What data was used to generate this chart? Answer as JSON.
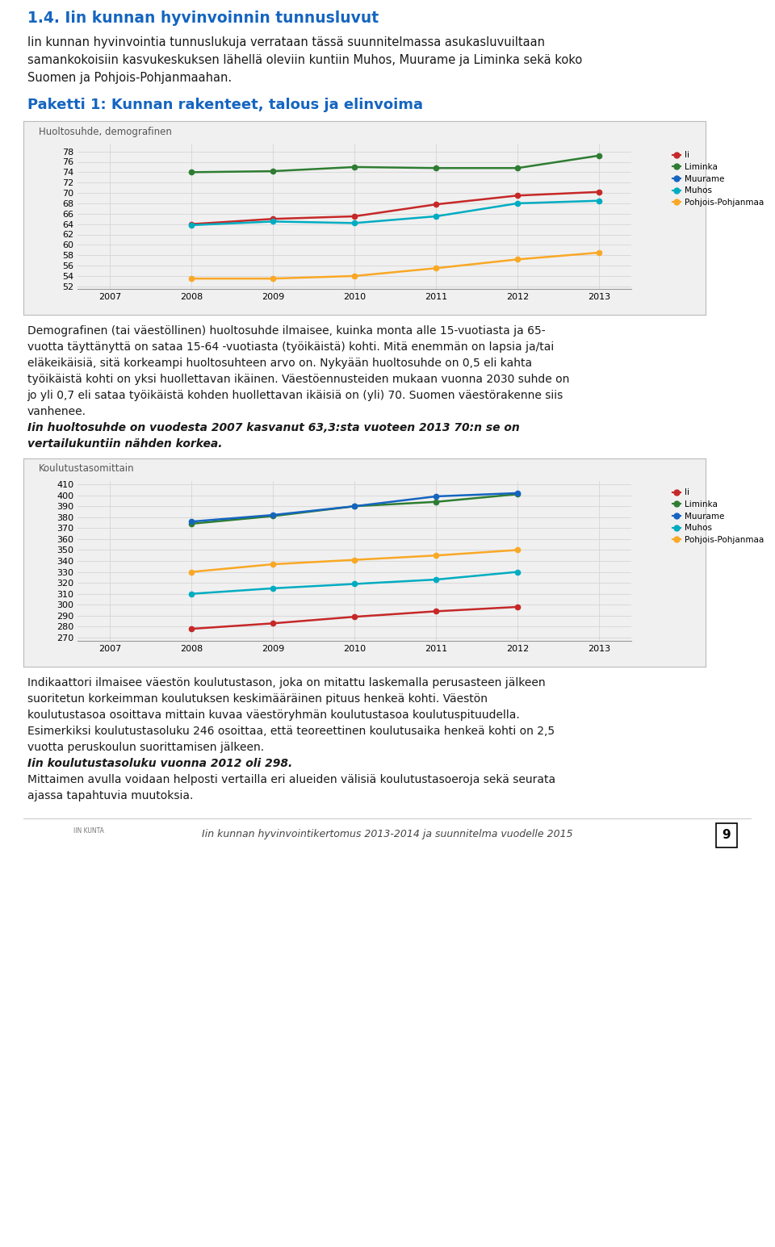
{
  "page_title": "1.4. Iin kunnan hyvinvoinnin tunnusluvut",
  "page_title_color": "#1565c0",
  "intro_lines": [
    "Iin kunnan hyvinvointia tunnuslukuja verrataan tässä suunnitelmassa asukasluvuiltaan",
    "samankokoisiin kasvukeskuksen lähellä oleviin kuntiin Muhos, Muurame ja Liminka sekä koko",
    "Suomen ja Pohjois-Pohjanmaahan."
  ],
  "section_title": "Paketti 1: Kunnan rakenteet, talous ja elinvoima",
  "section_title_color": "#1565c0",
  "chart1_title": "Huoltosuhde, demografinen",
  "chart1_years": [
    2007,
    2008,
    2009,
    2010,
    2011,
    2012,
    2013
  ],
  "chart1_ylim": [
    51.5,
    79.5
  ],
  "chart1_yticks": [
    52,
    54,
    56,
    58,
    60,
    62,
    64,
    66,
    68,
    70,
    72,
    74,
    76,
    78
  ],
  "chart1_series": {
    "Ii": [
      null,
      64.0,
      65.0,
      65.5,
      67.8,
      69.5,
      70.2
    ],
    "Liminka": [
      null,
      74.0,
      74.2,
      75.0,
      74.8,
      74.8,
      77.2
    ],
    "Muurame": [
      null,
      null,
      null,
      null,
      null,
      null,
      null
    ],
    "Muhos": [
      null,
      63.8,
      64.5,
      64.2,
      65.5,
      68.0,
      68.5
    ],
    "Pohjois-Pohjanmaa": [
      null,
      53.5,
      53.5,
      54.0,
      55.5,
      57.2,
      58.5
    ]
  },
  "chart1_colors": {
    "Ii": "#c62828",
    "Liminka": "#2e7d32",
    "Muurame": "#1565c0",
    "Muhos": "#00acc1",
    "Pohjois-Pohjanmaa": "#f9a825"
  },
  "para1_lines": [
    "Demografinen (tai väestöllinen) huoltosuhde ilmaisee, kuinka monta alle 15-vuotiasta ja 65-",
    "vuotta täyttänyttä on sataa 15-64 -vuotiasta (työikäistä) kohti. Mitä enemmän on lapsia ja/tai",
    "eläkeikäisiä, sitä korkeampi huoltosuhteen arvo on. Nykyään huoltosuhde on 0,5 eli kahta",
    "työikäistä kohti on yksi huollettavan ikäinen. Väestöennusteiden mukaan vuonna 2030 suhde on",
    "jo yli 0,7 eli sataa työikäistä kohden huollettavan ikäisiä on (yli) 70. Suomen väestörakenne siis",
    "vanhenee."
  ],
  "para1_bold_lines": [
    "Iin huoltosuhde on vuodesta 2007 kasvanut 63,3:sta vuoteen 2013 70:n se on",
    "vertailukuntiin nähden korkea."
  ],
  "chart2_title": "Koulutustasomittain",
  "chart2_years": [
    2007,
    2008,
    2009,
    2010,
    2011,
    2012,
    2013
  ],
  "chart2_ylim": [
    267,
    413
  ],
  "chart2_yticks": [
    270,
    280,
    290,
    300,
    310,
    320,
    330,
    340,
    350,
    360,
    370,
    380,
    390,
    400,
    410
  ],
  "chart2_series": {
    "Ii": [
      null,
      278,
      283,
      289,
      294,
      298,
      null
    ],
    "Liminka": [
      null,
      374,
      381,
      390,
      394,
      401,
      null
    ],
    "Muurame": [
      null,
      376,
      382,
      390,
      399,
      402,
      null
    ],
    "Muhos": [
      null,
      310,
      315,
      319,
      323,
      330,
      null
    ],
    "Pohjois-Pohjanmaa": [
      null,
      330,
      337,
      341,
      345,
      350,
      null
    ]
  },
  "chart2_colors": {
    "Ii": "#c62828",
    "Liminka": "#2e7d32",
    "Muurame": "#1565c0",
    "Muhos": "#00acc1",
    "Pohjois-Pohjanmaa": "#f9a825"
  },
  "para2_lines": [
    "Indikaattori ilmaisee väestön koulutustason, joka on mitattu laskemalla perusasteen jälkeen",
    "suoritetun korkeimman koulutuksen keskimääräinen pituus henkeä kohti. Väestön",
    "koulutustasoa osoittava mittain kuvaa väestöryhmän koulutustasoa koulutuspituudella.",
    "Esimerkiksi koulutustasoluku 246 osoittaa, että teoreettinen koulutusaika henkeä kohti on 2,5",
    "vuotta peruskoulun suorittamisen jälkeen."
  ],
  "para2_bold": "Iin koulutustasoluku vuonna 2012 oli 298.",
  "para2_end_lines": [
    "Mittaimen avulla voidaan helposti vertailla eri alueiden välisiä koulutustasoeroja sekä seurata",
    "ajassa tapahtuvia muutoksia."
  ],
  "footer_text": "Iin kunnan hyvinvointikertomus 2013-2014 ja suunnitelma vuodelle 2015",
  "page_num": "9",
  "bg_color": "#ffffff",
  "chart_bg": "#f0f0f0",
  "grid_color": "#d5d5d5",
  "text_color": "#1a1a1a",
  "chart_border": "#bbbbbb"
}
